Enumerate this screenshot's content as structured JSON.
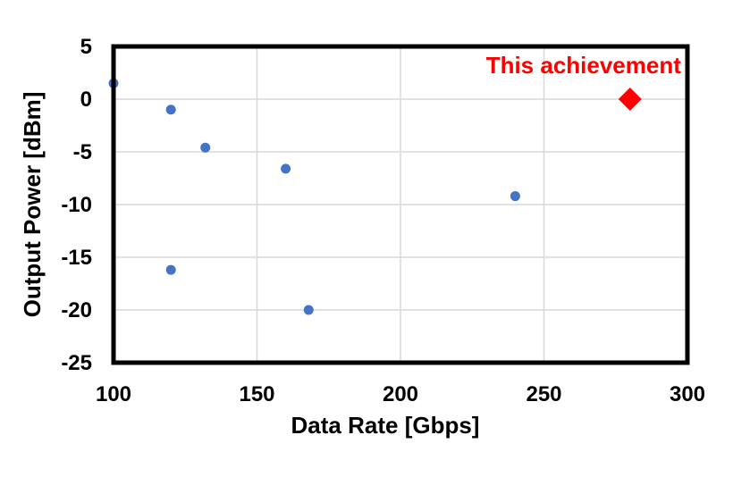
{
  "chart_data": {
    "type": "scatter",
    "xlabel": "Data Rate [Gbps]",
    "ylabel": "Output Power [dBm]",
    "xlim": [
      100,
      300
    ],
    "ylim": [
      -25,
      5
    ],
    "xticks": [
      100,
      150,
      200,
      250,
      300
    ],
    "yticks": [
      5,
      0,
      -5,
      -10,
      -15,
      -20,
      -25
    ],
    "grid": true,
    "series": [
      {
        "marker": "circle",
        "color": "#4472C4",
        "points": [
          {
            "x": 100,
            "y": 1.5
          },
          {
            "x": 120,
            "y": -1
          },
          {
            "x": 132,
            "y": -4.6
          },
          {
            "x": 160,
            "y": -6.6
          },
          {
            "x": 240,
            "y": -9.2
          },
          {
            "x": 120,
            "y": -16.2
          },
          {
            "x": 168,
            "y": -20
          }
        ]
      },
      {
        "marker": "diamond",
        "color": "#FF0000",
        "points": [
          {
            "x": 280,
            "y": 0
          }
        ]
      }
    ],
    "annotations": [
      {
        "text": "This achievement",
        "color": "#FF0000",
        "anchor_x": 280,
        "anchor_y": 3.2
      }
    ]
  }
}
